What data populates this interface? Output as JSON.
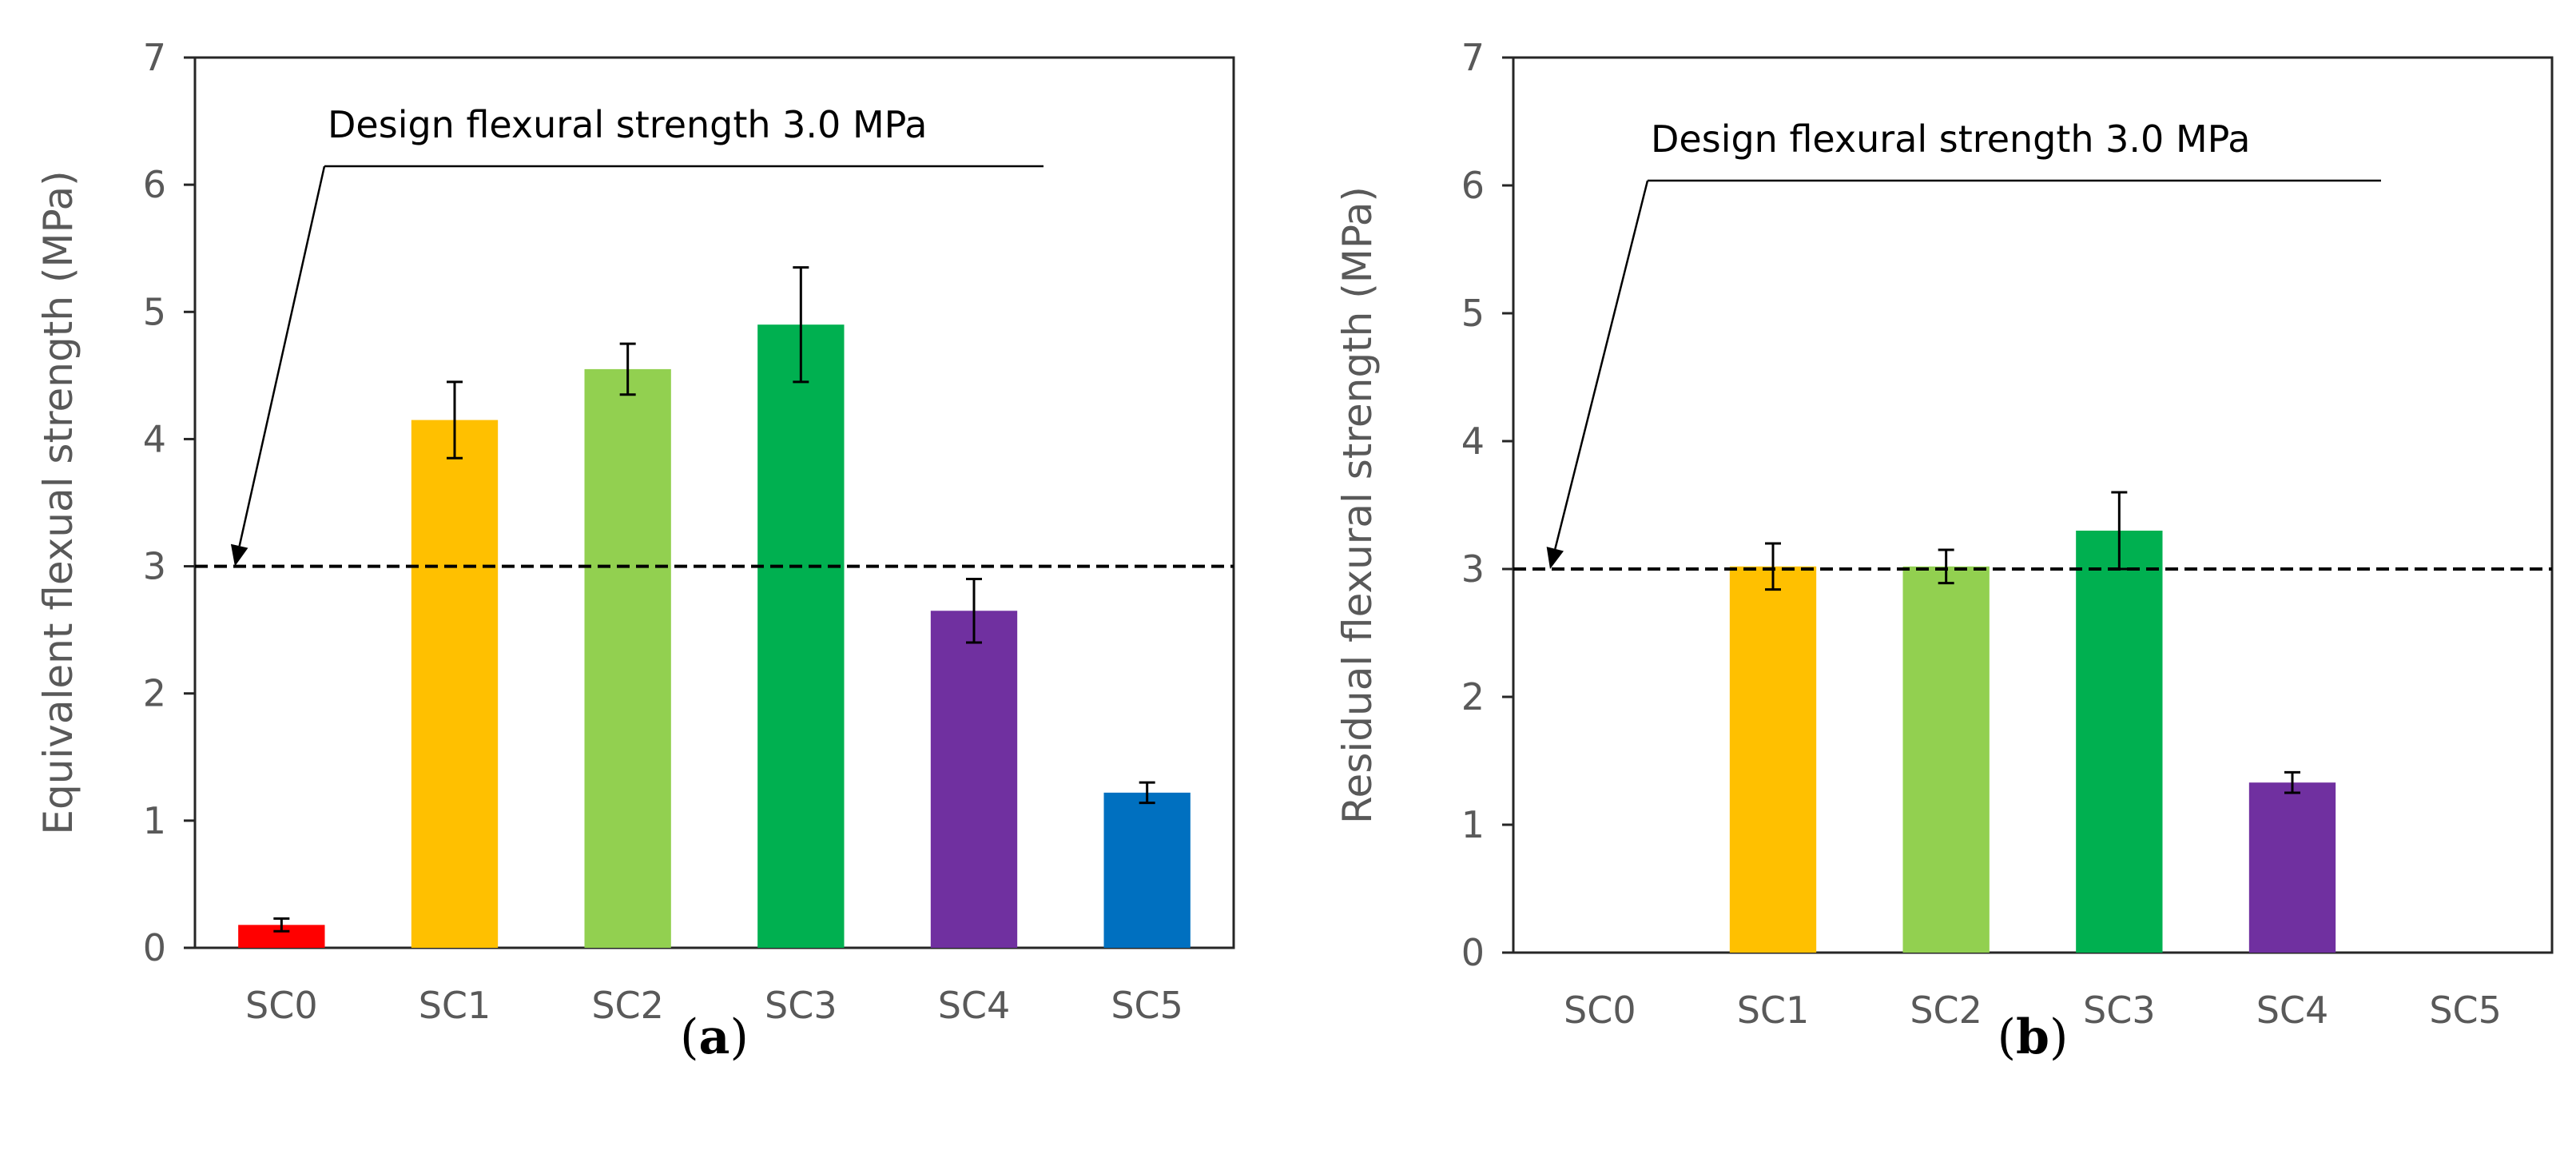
{
  "chart_data": [
    {
      "panel_label": "a",
      "type": "bar",
      "categories": [
        "SC0",
        "SC1",
        "SC2",
        "SC3",
        "SC4",
        "SC5"
      ],
      "values": [
        0.18,
        4.15,
        4.55,
        4.9,
        2.65,
        1.22
      ],
      "errors": [
        0.05,
        0.3,
        0.2,
        0.45,
        0.25,
        0.08
      ],
      "colors": [
        "#ff0000",
        "#ffc000",
        "#92d050",
        "#00b050",
        "#7030a0",
        "#0070c0"
      ],
      "ylabel": "Equivalent flexual strength (MPa)",
      "ylim": [
        0,
        7
      ],
      "yticks": [
        "0",
        "1",
        "2",
        "3",
        "4",
        "5",
        "6",
        "7"
      ],
      "threshold": 3.0,
      "annotation": "Design flexural strength 3.0 MPa"
    },
    {
      "panel_label": "b",
      "type": "bar",
      "categories": [
        "SC0",
        "SC1",
        "SC2",
        "SC3",
        "SC4",
        "SC5"
      ],
      "values": [
        null,
        3.02,
        3.02,
        3.3,
        1.33,
        null
      ],
      "errors": [
        null,
        0.18,
        0.13,
        0.3,
        0.08,
        null
      ],
      "colors": [
        "#ff0000",
        "#ffc000",
        "#92d050",
        "#00b050",
        "#7030a0",
        "#0070c0"
      ],
      "ylabel": "Residual flexural strength (MPa)",
      "ylim": [
        0,
        7
      ],
      "yticks": [
        "0",
        "1",
        "2",
        "3",
        "4",
        "5",
        "6",
        "7"
      ],
      "threshold": 3.0,
      "annotation": "Design flexural strength 3.0 MPa"
    }
  ]
}
